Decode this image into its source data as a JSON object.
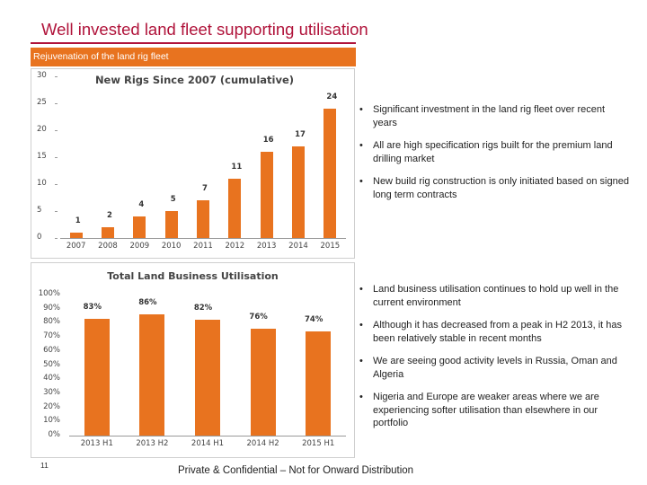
{
  "slide": {
    "title": "Well invested land fleet supporting utilisation",
    "banner": "Rejuvenation of the land rig fleet",
    "page_number": "11",
    "footer": "Private & Confidential – Not for Onward Distribution"
  },
  "bullets_top": [
    "Significant investment in the land rig fleet over recent years",
    "All are high specification rigs built for the premium land drilling market",
    "New build rig construction is only initiated based on signed long term contracts"
  ],
  "bullets_bottom": [
    "Land business utilisation continues to hold up well in the current environment",
    "Although it has decreased from a peak in H2 2013, it has been relatively stable in recent months",
    "We are seeing good activity levels in Russia, Oman and Algeria",
    "Nigeria and Europe are weaker areas where we are experiencing softer utilisation than elsewhere in our portfolio"
  ],
  "bullet_glyph": "•",
  "colors": {
    "accent": "#b0133a",
    "bar": "#e8731f"
  },
  "chart_data": [
    {
      "type": "bar",
      "title": "New Rigs Since 2007 (cumulative)",
      "categories": [
        "2007",
        "2008",
        "2009",
        "2010",
        "2011",
        "2012",
        "2013",
        "2014",
        "2015"
      ],
      "values": [
        1,
        2,
        4,
        5,
        7,
        11,
        16,
        17,
        24
      ],
      "data_labels": [
        "1",
        "2",
        "4",
        "5",
        "7",
        "11",
        "16",
        "17",
        "24"
      ],
      "ylim": [
        0,
        30
      ],
      "yticks": [
        "0",
        "5",
        "10",
        "15",
        "20",
        "25",
        "30"
      ],
      "grid": false
    },
    {
      "type": "bar",
      "title": "Total Land Business Utilisation",
      "categories": [
        "2013 H1",
        "2013 H2",
        "2014 H1",
        "2014 H2",
        "2015 H1"
      ],
      "values": [
        83,
        86,
        82,
        76,
        74
      ],
      "data_labels": [
        "83%",
        "86%",
        "82%",
        "76%",
        "74%"
      ],
      "ylim": [
        0,
        100
      ],
      "yticks": [
        "0%",
        "10%",
        "20%",
        "30%",
        "40%",
        "50%",
        "60%",
        "70%",
        "80%",
        "90%",
        "100%"
      ],
      "grid": false
    }
  ]
}
